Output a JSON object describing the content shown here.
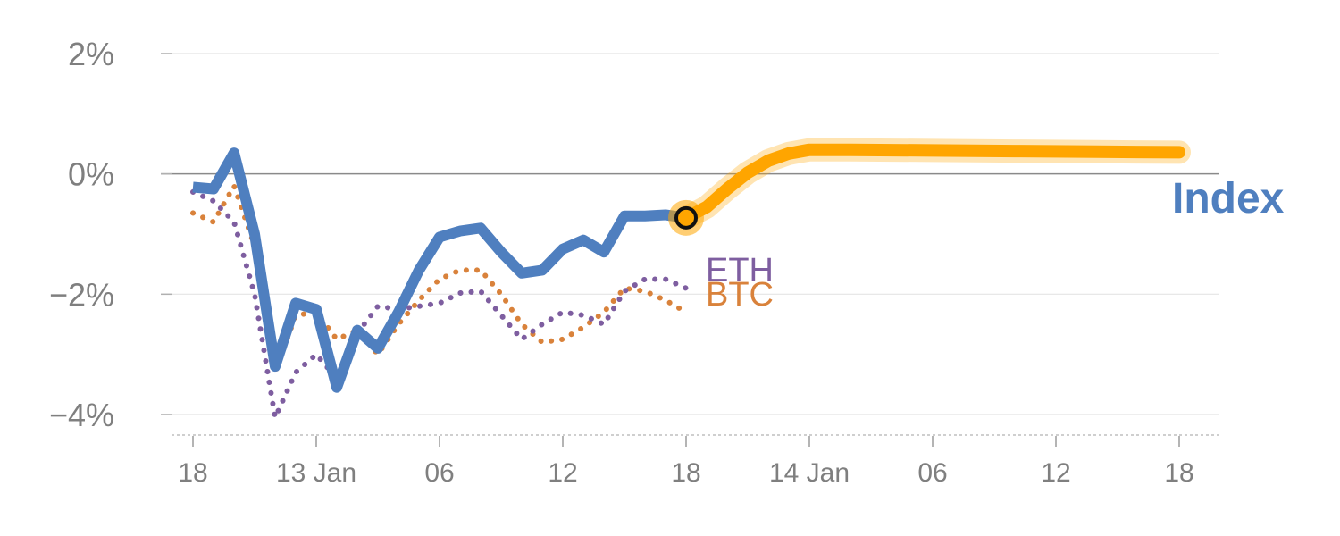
{
  "chart_data": {
    "type": "line",
    "x_unit": "hours",
    "x_ticks": [
      "18",
      "13 Jan",
      "06",
      "12",
      "18",
      "14 Jan",
      "06",
      "12",
      "18"
    ],
    "x_tick_positions": [
      0,
      6,
      12,
      18,
      24,
      30,
      36,
      42,
      48
    ],
    "y_ticks": [
      2,
      0,
      -2,
      -4
    ],
    "y_tick_labels": [
      "2%",
      "0%",
      "−2%",
      "−4%"
    ],
    "ylim": [
      -4.3,
      2
    ],
    "xlim": [
      -1,
      49
    ],
    "reference_line": 0,
    "grid": true,
    "series": [
      {
        "name": "Index",
        "style": "solid",
        "color": "#4f7fbf",
        "x": [
          0,
          1,
          2,
          3,
          4,
          5,
          6,
          7,
          8,
          9,
          10,
          11,
          12,
          13,
          14,
          15,
          16,
          17,
          18,
          19,
          20,
          21,
          22,
          23,
          24
        ],
        "y": [
          -0.22,
          -0.25,
          0.35,
          -1.0,
          -3.2,
          -2.15,
          -2.25,
          -3.55,
          -2.6,
          -2.9,
          -2.3,
          -1.6,
          -1.05,
          -0.95,
          -0.9,
          -1.3,
          -1.65,
          -1.6,
          -1.25,
          -1.1,
          -1.3,
          -0.7,
          -0.7,
          -0.68,
          -0.73
        ]
      },
      {
        "name": "BTC",
        "style": "dotted",
        "color": "#d9823b",
        "x": [
          0,
          1,
          2,
          3,
          4,
          5,
          6,
          7,
          8,
          9,
          10,
          11,
          12,
          13,
          14,
          15,
          16,
          17,
          18,
          19,
          20,
          21,
          22,
          23,
          24
        ],
        "y": [
          -0.65,
          -0.8,
          -0.2,
          -1.2,
          -3.3,
          -2.35,
          -2.3,
          -2.75,
          -2.6,
          -3.0,
          -2.5,
          -2.1,
          -1.75,
          -1.6,
          -1.6,
          -2.0,
          -2.5,
          -2.8,
          -2.75,
          -2.55,
          -2.3,
          -1.9,
          -1.95,
          -2.1,
          -2.3
        ]
      },
      {
        "name": "ETH",
        "style": "dotted",
        "color": "#7e5ea0",
        "x": [
          0,
          1,
          2,
          3,
          4,
          5,
          6,
          7,
          8,
          9,
          10,
          11,
          12,
          13,
          14,
          15,
          16,
          17,
          18,
          19,
          20,
          21,
          22,
          23,
          24
        ],
        "y": [
          -0.3,
          -0.45,
          -0.8,
          -2.0,
          -4.05,
          -3.3,
          -3.0,
          -3.4,
          -2.65,
          -2.2,
          -2.25,
          -2.2,
          -2.15,
          -1.98,
          -1.95,
          -2.35,
          -2.75,
          -2.5,
          -2.3,
          -2.35,
          -2.5,
          -1.95,
          -1.75,
          -1.75,
          -1.9
        ]
      },
      {
        "name": "",
        "style": "forecast",
        "color": "#ffa500",
        "x": [
          24,
          25,
          26,
          27,
          28,
          29,
          30,
          32,
          36,
          40,
          44,
          48
        ],
        "y": [
          -0.73,
          -0.55,
          -0.25,
          0.02,
          0.22,
          0.34,
          0.4,
          0.4,
          0.39,
          0.38,
          0.37,
          0.36
        ]
      }
    ],
    "marker": {
      "x": 24,
      "y": -0.73
    },
    "labels": {
      "index": "Index",
      "eth": "ETH",
      "btc": "BTC"
    }
  }
}
